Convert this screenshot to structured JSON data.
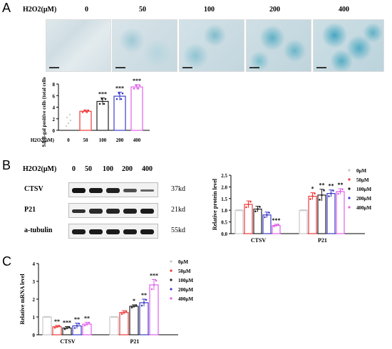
{
  "panels": {
    "a": "A",
    "b": "B",
    "c": "C"
  },
  "panel_a": {
    "treatment_label": "H2O2(μM)",
    "concentrations": [
      "0",
      "50",
      "100",
      "200",
      "400"
    ],
    "inset_xlabel": "H2O2(μM)"
  },
  "panel_b": {
    "treatment_label": "H2O2(μM)",
    "concentrations": [
      "0",
      "50",
      "100",
      "200",
      "400"
    ],
    "blots": [
      {
        "protein": "CTSV",
        "size": "37kd",
        "intensity": [
          1.0,
          0.95,
          0.9,
          0.6,
          0.45
        ]
      },
      {
        "protein": "P21",
        "size": "21kd",
        "intensity": [
          0.8,
          0.85,
          0.88,
          0.92,
          0.95
        ]
      },
      {
        "protein": "a-tubulin",
        "size": "55kd",
        "intensity": [
          0.95,
          0.95,
          0.95,
          0.95,
          0.95
        ]
      }
    ]
  },
  "colors": {
    "0μM": "#c8c8c8",
    "50μM": "#ee3b3b",
    "100μM": "#222222",
    "200μM": "#3c3cc8",
    "400μM": "#e060e8"
  },
  "chart_data": [
    {
      "type": "bar",
      "id": "sa-gal",
      "ylabel": "SA-β-gal positive cells (total cells(%))",
      "xlabel": "H2O2(μM)",
      "categories": [
        "0",
        "50",
        "100",
        "200",
        "400"
      ],
      "values": [
        0,
        3.3,
        5.0,
        5.9,
        7.5
      ],
      "errors": [
        0,
        0.2,
        0.6,
        0.7,
        0.4
      ],
      "significance": [
        "",
        "",
        "***",
        "***",
        "***"
      ],
      "ylim": [
        0,
        8
      ],
      "yticks": [
        "0",
        "2",
        "4",
        "6",
        "8"
      ],
      "colors": [
        "#c8c8c8",
        "#ee3b3b",
        "#222222",
        "#3c3cc8",
        "#e060e8"
      ]
    },
    {
      "type": "bar",
      "id": "protein",
      "ylabel": "Relative protein level",
      "groups": [
        "CTSV",
        "P21"
      ],
      "series": [
        {
          "name": "0μM",
          "values": [
            1.0,
            1.0
          ],
          "errors": [
            0,
            0
          ],
          "sig": [
            "",
            ""
          ]
        },
        {
          "name": "50μM",
          "values": [
            1.25,
            1.6
          ],
          "errors": [
            0.15,
            0.15
          ],
          "sig": [
            "",
            "*"
          ]
        },
        {
          "name": "100μM",
          "values": [
            1.05,
            1.65
          ],
          "errors": [
            0.12,
            0.25
          ],
          "sig": [
            "",
            "**"
          ]
        },
        {
          "name": "200μM",
          "values": [
            0.8,
            1.72
          ],
          "errors": [
            0.12,
            0.15
          ],
          "sig": [
            "",
            "**"
          ]
        },
        {
          "name": "400μM",
          "values": [
            0.35,
            1.8
          ],
          "errors": [
            0.05,
            0.12
          ],
          "sig": [
            "***",
            "**"
          ]
        }
      ],
      "ylim": [
        0,
        2.5
      ],
      "yticks": [
        "0.0",
        "0.5",
        "1.0",
        "1.5",
        "2.0",
        "2.5"
      ],
      "legend": [
        "0μM",
        "50μM",
        "100μM",
        "200μM",
        "400μM"
      ]
    },
    {
      "type": "bar",
      "id": "mrna",
      "ylabel": "Relative mRNA level",
      "groups": [
        "CTSV",
        "P21"
      ],
      "series": [
        {
          "name": "0μM",
          "values": [
            1.0,
            1.0
          ],
          "errors": [
            0,
            0
          ],
          "sig": [
            "",
            ""
          ]
        },
        {
          "name": "50μM",
          "values": [
            0.45,
            1.25
          ],
          "errors": [
            0.07,
            0.1
          ],
          "sig": [
            "**",
            ""
          ]
        },
        {
          "name": "100μM",
          "values": [
            0.38,
            1.6
          ],
          "errors": [
            0.08,
            0.08
          ],
          "sig": [
            "***",
            "*"
          ]
        },
        {
          "name": "200μM",
          "values": [
            0.5,
            1.8
          ],
          "errors": [
            0.15,
            0.2
          ],
          "sig": [
            "**",
            "**"
          ]
        },
        {
          "name": "400μM",
          "values": [
            0.6,
            2.8
          ],
          "errors": [
            0.1,
            0.3
          ],
          "sig": [
            "**",
            "***"
          ]
        }
      ],
      "ylim": [
        0,
        4
      ],
      "yticks": [
        "0",
        "1",
        "2",
        "3",
        "4"
      ],
      "legend": [
        "0μM",
        "50μM",
        "100μM",
        "200μM",
        "400μM"
      ]
    }
  ]
}
